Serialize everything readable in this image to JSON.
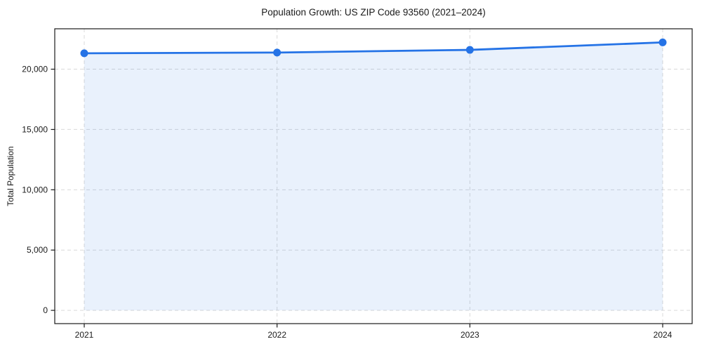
{
  "chart_data": {
    "type": "area",
    "title": "Population Growth: US ZIP Code 93560 (2021–2024)",
    "xlabel": "",
    "ylabel": "Total Population",
    "x": [
      2021,
      2022,
      2023,
      2024
    ],
    "xtick_labels": [
      "2021",
      "2022",
      "2023",
      "2024"
    ],
    "series": [
      {
        "name": "Total Population",
        "values": [
          21320,
          21380,
          21600,
          22220
        ]
      }
    ],
    "yticks": [
      0,
      5000,
      10000,
      15000,
      20000
    ],
    "ytick_labels": [
      "0",
      "5,000",
      "10,000",
      "15,000",
      "20,000"
    ],
    "ylim": [
      -1100,
      23350
    ],
    "grid": "on",
    "grid_style": "dashed",
    "legend": "none",
    "marker": "circle",
    "fill_baseline": 0,
    "colors": {
      "line": "#2573e6",
      "marker": "#2573e6",
      "area_fill": "rgba(37,115,230,0.10)",
      "grid": "#d9d9d9",
      "axis": "#1a1a1a",
      "text": "#1a1a1a",
      "background": "#ffffff"
    }
  }
}
